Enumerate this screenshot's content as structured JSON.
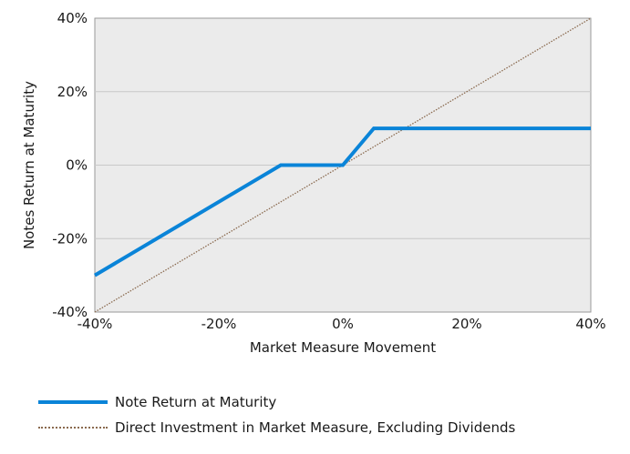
{
  "chart_data": {
    "type": "line",
    "xlabel": "Market Measure Movement",
    "ylabel": "Notes Return at Maturity",
    "xlim": [
      -40,
      40
    ],
    "ylim": [
      -40,
      40
    ],
    "x_ticks": [
      "-40%",
      "-20%",
      "0%",
      "20%",
      "40%"
    ],
    "y_ticks": [
      "40%",
      "20%",
      "0%",
      "-20%",
      "-40%"
    ],
    "grid": "horizontal",
    "legend_position": "bottom",
    "series": [
      {
        "name": "Note Return at Maturity",
        "color": "#0a84d8",
        "style": "solid",
        "x": [
          -40,
          -10,
          0,
          5,
          40
        ],
        "y": [
          -30,
          0,
          0,
          10,
          10
        ]
      },
      {
        "name": "Direct Investment in Market Measure, Excluding Dividends",
        "color": "#8a6a4f",
        "style": "dotted",
        "x": [
          -40,
          40
        ],
        "y": [
          -40,
          40
        ]
      }
    ]
  }
}
